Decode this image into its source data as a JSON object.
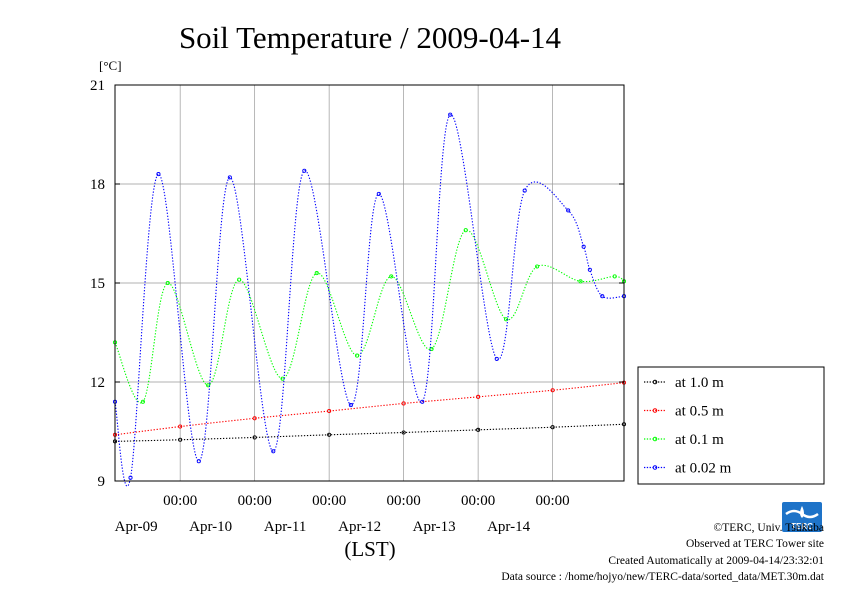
{
  "chart_data": {
    "type": "line",
    "title": "Soil Temperature / 2009-04-14",
    "ylabel": "[°C]",
    "xlabel": "(LST)",
    "ylim": [
      9,
      21
    ],
    "yticks": [
      9,
      12,
      15,
      18,
      21
    ],
    "xlim": [
      "2009-04-08T03:00",
      "2009-04-14T23:00"
    ],
    "xticks": [
      {
        "time": "2009-04-09T00:00",
        "label": "00:00",
        "day": "Apr-09"
      },
      {
        "time": "2009-04-10T00:00",
        "label": "00:00",
        "day": "Apr-10"
      },
      {
        "time": "2009-04-11T00:00",
        "label": "00:00",
        "day": "Apr-11"
      },
      {
        "time": "2009-04-12T00:00",
        "label": "00:00",
        "day": "Apr-12"
      },
      {
        "time": "2009-04-13T00:00",
        "label": "00:00",
        "day": "Apr-13"
      },
      {
        "time": "2009-04-14T00:00",
        "label": "00:00",
        "day": "Apr-14"
      }
    ],
    "grid": true,
    "legend_position": "right",
    "series": [
      {
        "name": "at 1.0 m",
        "color": "#000000",
        "x": [
          "2009-04-08T03:00",
          "2009-04-09T00:00",
          "2009-04-10T00:00",
          "2009-04-11T00:00",
          "2009-04-12T00:00",
          "2009-04-13T00:00",
          "2009-04-14T00:00",
          "2009-04-14T23:00"
        ],
        "y": [
          10.2,
          10.25,
          10.32,
          10.4,
          10.47,
          10.55,
          10.63,
          10.72
        ]
      },
      {
        "name": "at 0.5 m",
        "color": "#ff0000",
        "x": [
          "2009-04-08T03:00",
          "2009-04-09T00:00",
          "2009-04-10T00:00",
          "2009-04-11T00:00",
          "2009-04-12T00:00",
          "2009-04-13T00:00",
          "2009-04-14T00:00",
          "2009-04-14T23:00"
        ],
        "y": [
          10.4,
          10.65,
          10.9,
          11.12,
          11.35,
          11.55,
          11.75,
          11.98
        ]
      },
      {
        "name": "at 0.1 m",
        "color": "#00ff00",
        "x": [
          "2009-04-08T03:00",
          "2009-04-08T12:00",
          "2009-04-08T20:00",
          "2009-04-09T09:00",
          "2009-04-09T19:00",
          "2009-04-10T09:00",
          "2009-04-10T20:00",
          "2009-04-11T09:00",
          "2009-04-11T20:00",
          "2009-04-12T09:00",
          "2009-04-12T20:00",
          "2009-04-13T09:00",
          "2009-04-13T19:00",
          "2009-04-14T09:00",
          "2009-04-14T20:00",
          "2009-04-14T23:00"
        ],
        "y": [
          13.2,
          11.4,
          15.0,
          11.9,
          15.1,
          12.1,
          15.3,
          12.8,
          15.2,
          13.0,
          16.6,
          13.9,
          15.5,
          15.05,
          15.2,
          15.05
        ]
      },
      {
        "name": "at 0.02 m",
        "color": "#0000ff",
        "x": [
          "2009-04-08T03:00",
          "2009-04-08T08:00",
          "2009-04-08T17:00",
          "2009-04-09T06:00",
          "2009-04-09T16:00",
          "2009-04-10T06:00",
          "2009-04-10T16:00",
          "2009-04-11T07:00",
          "2009-04-11T16:00",
          "2009-04-12T06:00",
          "2009-04-12T15:00",
          "2009-04-13T06:00",
          "2009-04-13T15:00",
          "2009-04-14T05:00",
          "2009-04-14T10:00",
          "2009-04-14T12:00",
          "2009-04-14T16:00",
          "2009-04-14T23:00"
        ],
        "y": [
          11.4,
          9.1,
          18.3,
          9.6,
          18.2,
          9.9,
          18.4,
          11.3,
          17.7,
          11.4,
          20.1,
          12.7,
          17.8,
          17.2,
          16.1,
          15.4,
          14.6,
          14.6
        ]
      }
    ]
  },
  "credits": {
    "copyright": "©TERC, Univ. Tsukuba",
    "site": "Observed at TERC Tower site",
    "created": "Created Automatically at 2009-04-14/23:32:01",
    "source": "Data source : /home/hojyo/new/TERC-data/sorted_data/MET.30m.dat",
    "logo_text": "TERC"
  }
}
